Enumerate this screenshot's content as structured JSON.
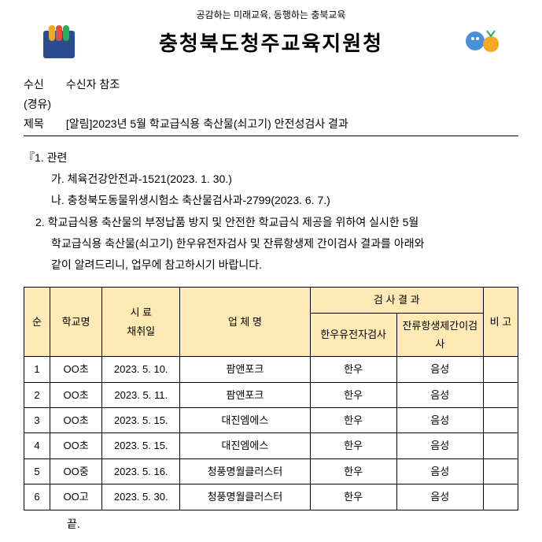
{
  "header": {
    "slogan": "공감하는 미래교육, 동행하는 충북교육",
    "org_name": "충청북도청주교육지원청"
  },
  "doc_meta": {
    "recipient_label": "수신",
    "recipient_value": "수신자 참조",
    "via_label": "(경유)",
    "subject_label": "제목",
    "subject_value": "[알림]2023년 5월 학교급식용 축산물(쇠고기) 안전성검사 결과"
  },
  "body": {
    "section1_title": "『1. 관련",
    "ref_a": "가. 체육건강안전과-1521(2023. 1. 30.)",
    "ref_b": "나. 충청북도동물위생시험소 축산물검사과-2799(2023. 6. 7.)",
    "section2_line1": "2. 학교급식용 축산물의 부정납품 방지 및 안전한 학교급식 제공을 위하여 실시한 5월",
    "section2_line2": "학교급식용 축산물(쇠고기) 한우유전자검사 및 잔류항생제 간이검사 결과를 아래와",
    "section2_line3": "같이 알려드리니, 업무에 참고하시기 바랍니다.",
    "end_mark": "끝."
  },
  "table": {
    "headers": {
      "no": "순",
      "school": "학교명",
      "date_line1": "시 료",
      "date_line2": "채취일",
      "company": "업 체 명",
      "result_group": "검 사 결 과",
      "result_1": "한우유전자검사",
      "result_2": "잔류항생제간이검사",
      "note": "비 고"
    },
    "rows": [
      {
        "no": "1",
        "school": "OO초",
        "date": "2023. 5. 10.",
        "company": "팜앤포크",
        "r1": "한우",
        "r2": "음성",
        "note": ""
      },
      {
        "no": "2",
        "school": "OO초",
        "date": "2023. 5. 11.",
        "company": "팜앤포크",
        "r1": "한우",
        "r2": "음성",
        "note": ""
      },
      {
        "no": "3",
        "school": "OO초",
        "date": "2023. 5. 15.",
        "company": "대진엠에스",
        "r1": "한우",
        "r2": "음성",
        "note": ""
      },
      {
        "no": "4",
        "school": "OO초",
        "date": "2023. 5. 15.",
        "company": "대진엠에스",
        "r1": "한우",
        "r2": "음성",
        "note": ""
      },
      {
        "no": "5",
        "school": "OO중",
        "date": "2023. 5. 16.",
        "company": "청풍명월클러스터",
        "r1": "한우",
        "r2": "음성",
        "note": ""
      },
      {
        "no": "6",
        "school": "OO고",
        "date": "2023. 5. 30.",
        "company": "청풍명월클러스터",
        "r1": "한우",
        "r2": "음성",
        "note": ""
      }
    ]
  },
  "colors": {
    "table_header_bg": "#ffe9b5",
    "text": "#000000",
    "border": "#000000"
  }
}
